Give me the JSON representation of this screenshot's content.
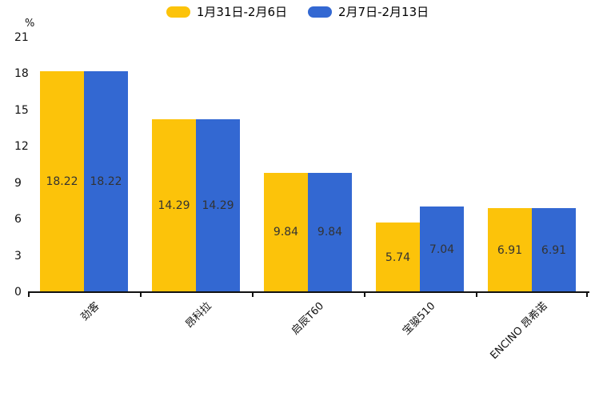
{
  "chart_data": {
    "type": "bar",
    "title": "",
    "unit_label": "%",
    "categories": [
      "劲客",
      "昂科拉",
      "启辰T60",
      "宝骏510",
      "ENCINO 昂希诺"
    ],
    "series": [
      {
        "name": "1月31日-2月6日",
        "color": "#FCC30A",
        "values": [
          18.22,
          14.29,
          9.84,
          5.74,
          6.91
        ]
      },
      {
        "name": "2月7日-2月13日",
        "color": "#3368D2",
        "values": [
          18.22,
          14.29,
          9.84,
          7.04,
          6.91
        ]
      }
    ],
    "yticks": [
      0,
      3,
      6,
      9,
      12,
      15,
      18,
      21
    ],
    "ylim": [
      0,
      21
    ],
    "grid": false,
    "legend_position": "top",
    "value_label_decimals": 2,
    "axis_color": "#111111",
    "value_label_color": "#333333"
  }
}
